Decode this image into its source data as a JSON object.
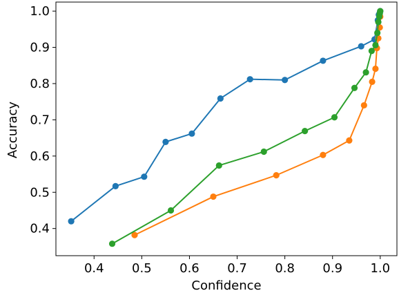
{
  "chart_data": {
    "type": "line",
    "title": "",
    "xlabel": "Confidence",
    "ylabel": "Accuracy",
    "xlim": [
      0.32,
      1.035
    ],
    "ylim": [
      0.325,
      1.025
    ],
    "grid": false,
    "legend": "none",
    "x_ticks": [
      "0.4",
      "0.5",
      "0.6",
      "0.7",
      "0.8",
      "0.9",
      "1.0"
    ],
    "y_ticks": [
      "0.4",
      "0.5",
      "0.6",
      "0.7",
      "0.8",
      "0.9",
      "1.0"
    ],
    "series": [
      {
        "color": "#1f77b4",
        "x": [
          0.352,
          0.445,
          0.505,
          0.55,
          0.605,
          0.665,
          0.727,
          0.8,
          0.88,
          0.96,
          0.988,
          0.995,
          0.997,
          0.999,
          1.0
        ],
        "y": [
          0.42,
          0.517,
          0.543,
          0.639,
          0.662,
          0.759,
          0.812,
          0.81,
          0.863,
          0.903,
          0.922,
          0.975,
          0.99,
          0.995,
          1.0
        ]
      },
      {
        "color": "#ff7f0e",
        "x": [
          0.485,
          0.65,
          0.782,
          0.88,
          0.935,
          0.966,
          0.983,
          0.99,
          0.993,
          0.996,
          0.999,
          1.0
        ],
        "y": [
          0.382,
          0.488,
          0.547,
          0.603,
          0.643,
          0.74,
          0.805,
          0.841,
          0.898,
          0.925,
          0.955,
          0.985
        ]
      },
      {
        "color": "#2ca02c",
        "x": [
          0.438,
          0.561,
          0.662,
          0.756,
          0.842,
          0.904,
          0.946,
          0.97,
          0.982,
          0.99,
          0.994,
          0.996,
          0.998,
          0.999,
          1.0
        ],
        "y": [
          0.358,
          0.45,
          0.574,
          0.612,
          0.669,
          0.707,
          0.788,
          0.831,
          0.89,
          0.906,
          0.94,
          0.97,
          0.985,
          0.993,
          1.0
        ]
      }
    ]
  }
}
